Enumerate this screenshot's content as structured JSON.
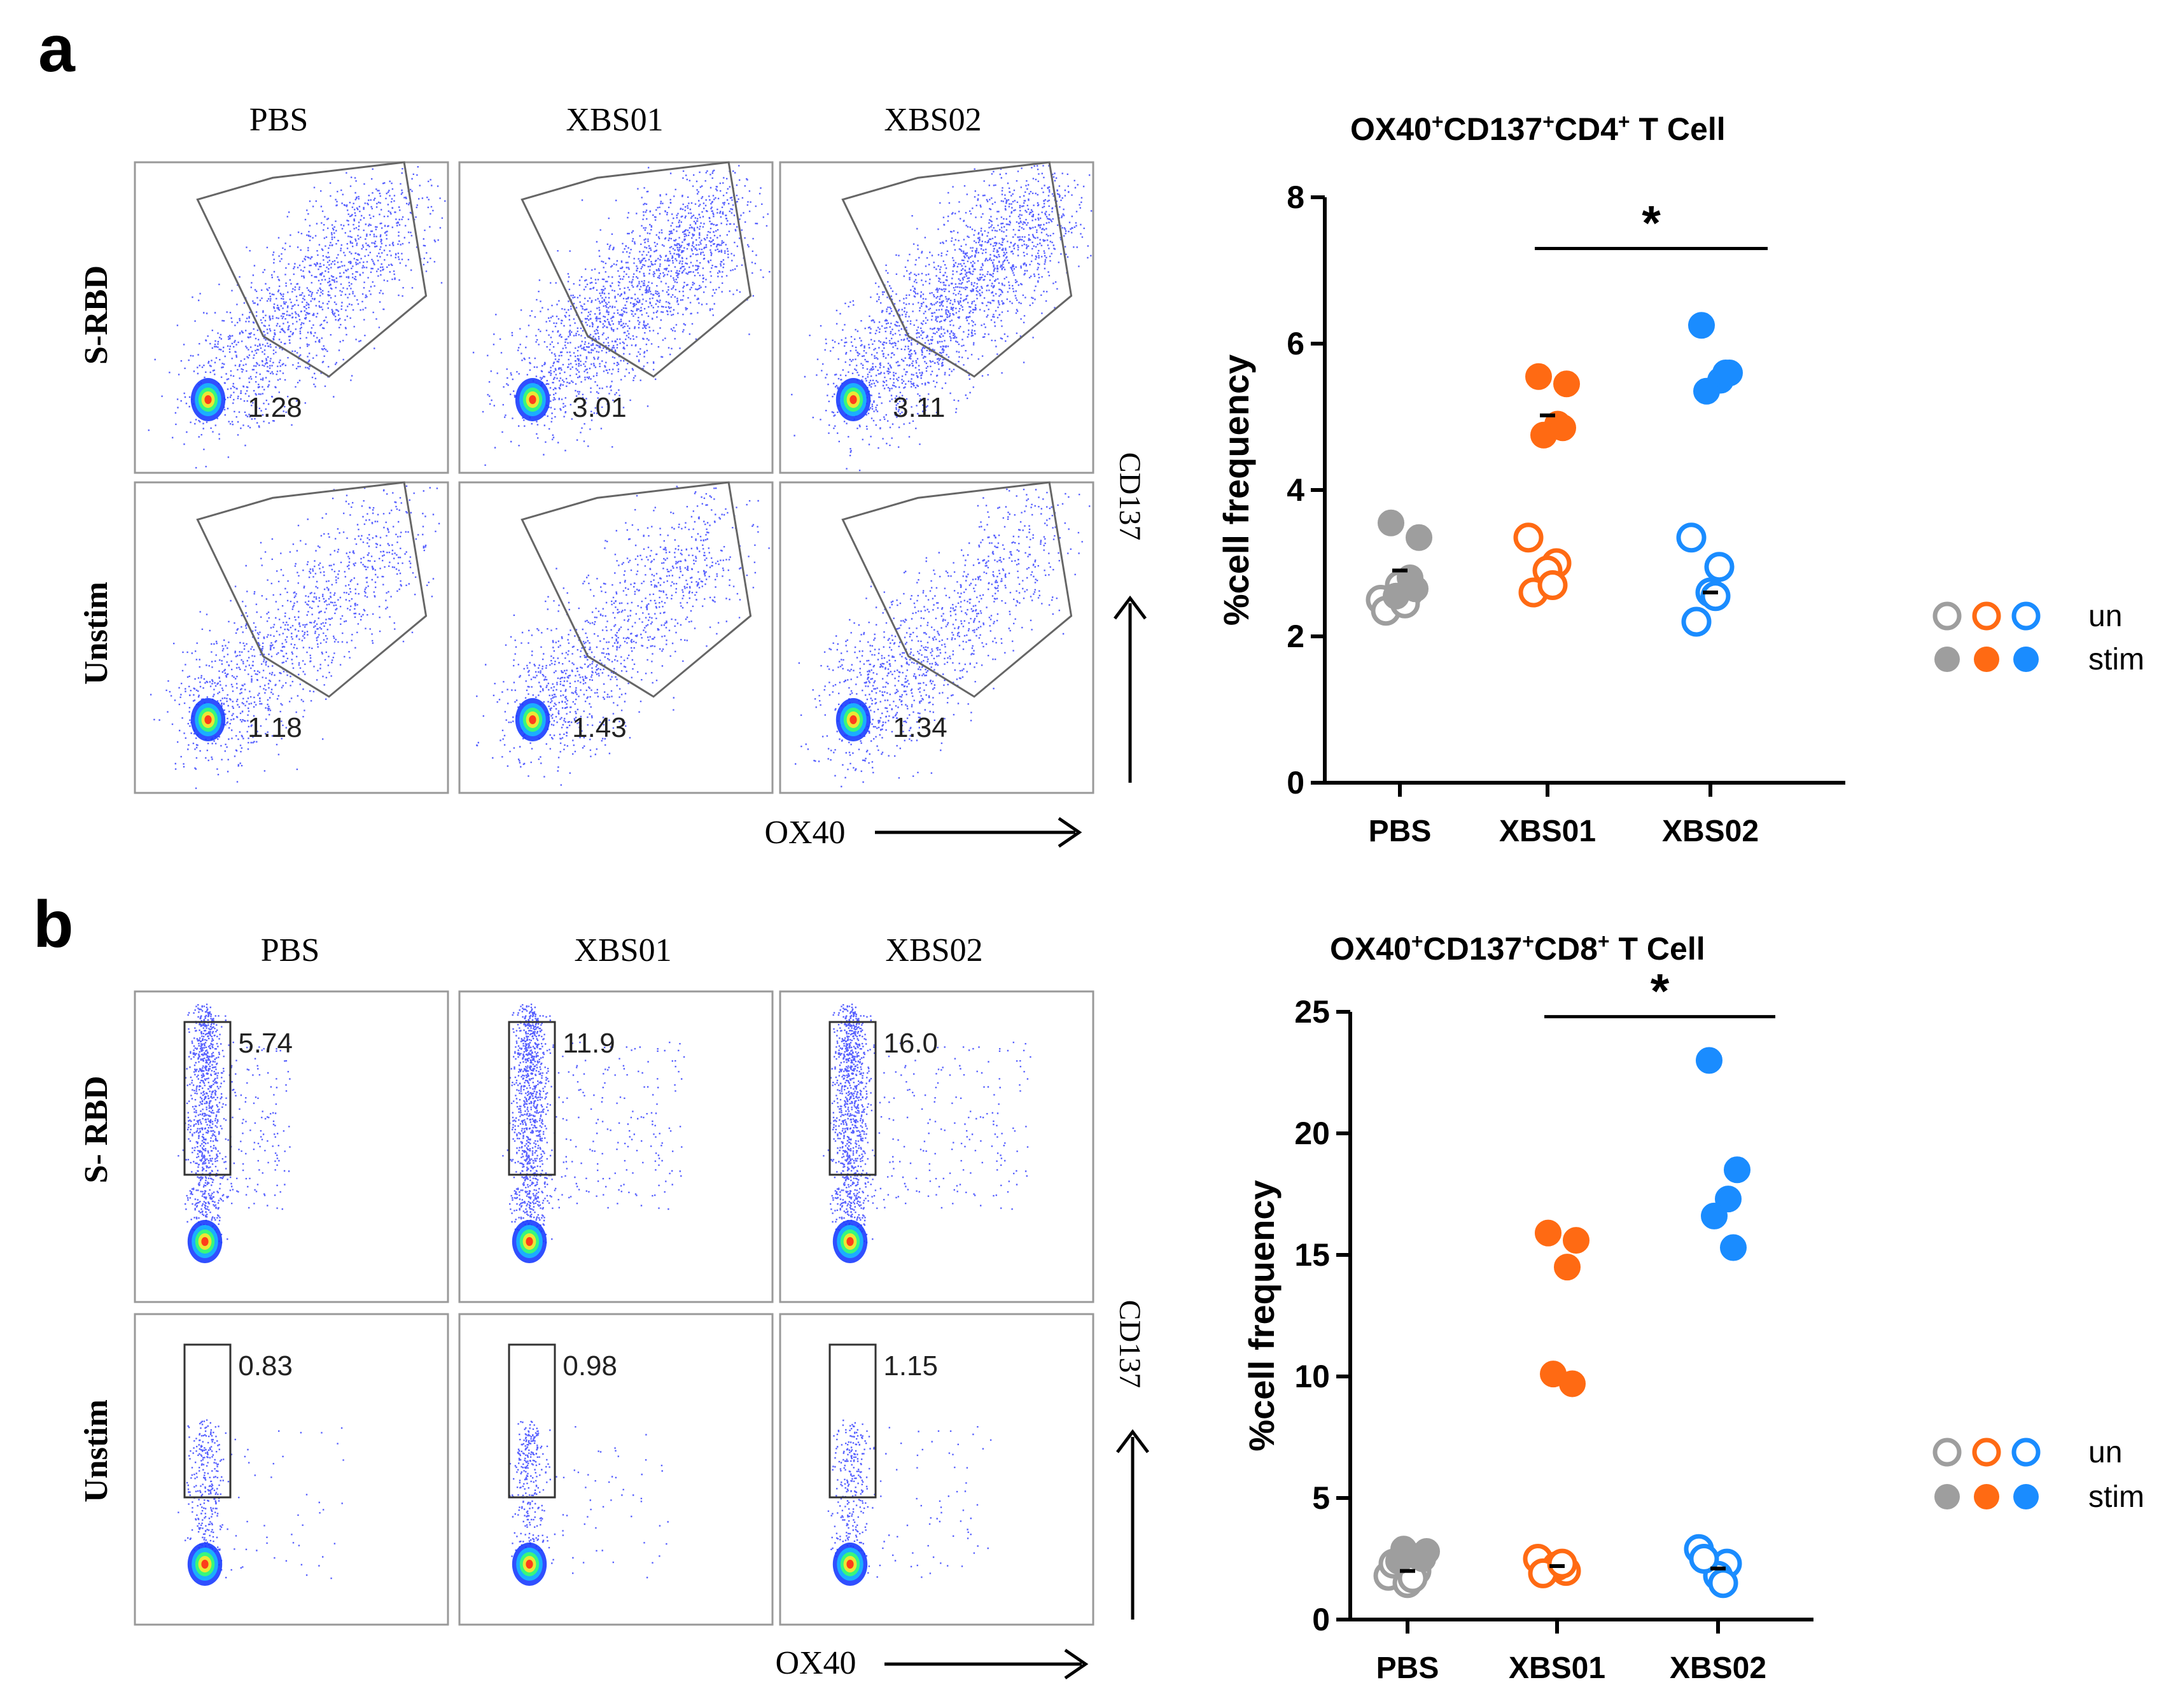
{
  "panels": {
    "a": {
      "letter": "a",
      "flow": {
        "columns": [
          "PBS",
          "XBS01",
          "XBS02"
        ],
        "rows": [
          "S-RBD",
          "Unstim"
        ],
        "values": [
          [
            "1.28",
            "3.01",
            "3.11"
          ],
          [
            "1.18",
            "1.43",
            "1.34"
          ]
        ],
        "gate": "polygon",
        "x_axis": "OX40",
        "y_axis": "CD137"
      }
    },
    "b": {
      "letter": "b",
      "flow": {
        "columns": [
          "PBS",
          "XBS01",
          "XBS02"
        ],
        "rows": [
          "S- RBD",
          "Unstim"
        ],
        "values": [
          [
            "5.74",
            "11.9",
            "16.0"
          ],
          [
            "0.83",
            "0.98",
            "1.15"
          ]
        ],
        "gate": "rectangle",
        "x_axis": "OX40",
        "y_axis": "CD137"
      }
    }
  },
  "legend": {
    "un": "un",
    "stim": "stim"
  },
  "colors": {
    "PBS": "#9e9e9e",
    "XBS01": "#ff6a13",
    "XBS02": "#1a8cff",
    "flow": "#1f2bff"
  },
  "chart_data": [
    {
      "type": "scatter",
      "panel": "a",
      "title_parts": [
        "OX40",
        "+",
        "CD137",
        "+",
        "CD4",
        "+",
        " T Cell"
      ],
      "categories": [
        "PBS",
        "XBS01",
        "XBS02"
      ],
      "ylabel": "%cell frequency",
      "ylim": [
        0,
        8
      ],
      "yticks": [
        0,
        2,
        4,
        6,
        8
      ],
      "legend": [
        "un",
        "stim"
      ],
      "legend_position": "right",
      "series": [
        {
          "name": "un",
          "values": [
            [
              2.5,
              2.6,
              2.7,
              2.35,
              2.45
            ],
            [
              3.35,
              3.0,
              2.9,
              2.6,
              2.7
            ],
            [
              3.35,
              2.95,
              2.6,
              2.2,
              2.55
            ]
          ]
        },
        {
          "name": "stim",
          "values": [
            [
              3.55,
              3.35,
              2.8,
              2.55,
              2.65
            ],
            [
              5.55,
              5.45,
              4.9,
              4.75,
              4.85
            ],
            [
              6.25,
              5.6,
              5.5,
              5.35,
              5.6
            ]
          ]
        }
      ],
      "means": [
        2.9,
        5.02,
        2.6
      ],
      "significance": {
        "from": "XBS01",
        "to": "XBS02",
        "y": 7.3,
        "label": "*"
      }
    },
    {
      "type": "scatter",
      "panel": "b",
      "title_parts": [
        "OX40",
        "+",
        "CD137",
        "+",
        "CD8",
        "+",
        " T Cell"
      ],
      "categories": [
        "PBS",
        "XBS01",
        "XBS02"
      ],
      "ylabel": "%cell frequency",
      "ylim": [
        0,
        25
      ],
      "yticks": [
        0,
        5,
        10,
        15,
        20,
        25
      ],
      "legend": [
        "un",
        "stim"
      ],
      "legend_position": "right",
      "series": [
        {
          "name": "un",
          "values": [
            [
              1.8,
              2.0,
              1.5,
              2.3,
              1.7
            ],
            [
              2.5,
              2.0,
              2.2,
              1.9,
              2.3
            ],
            [
              2.9,
              2.3,
              1.8,
              2.5,
              1.5
            ]
          ]
        },
        {
          "name": "stim",
          "values": [
            [
              2.4,
              2.8,
              2.6,
              2.9,
              2.5
            ],
            [
              15.9,
              15.6,
              14.5,
              10.1,
              9.7
            ],
            [
              23.0,
              18.5,
              17.3,
              16.6,
              15.3
            ]
          ]
        }
      ],
      "means": [
        2.0,
        2.2,
        2.1
      ],
      "significance": {
        "from": "XBS01",
        "to": "XBS02",
        "y": 24.8,
        "label": "*"
      }
    }
  ]
}
